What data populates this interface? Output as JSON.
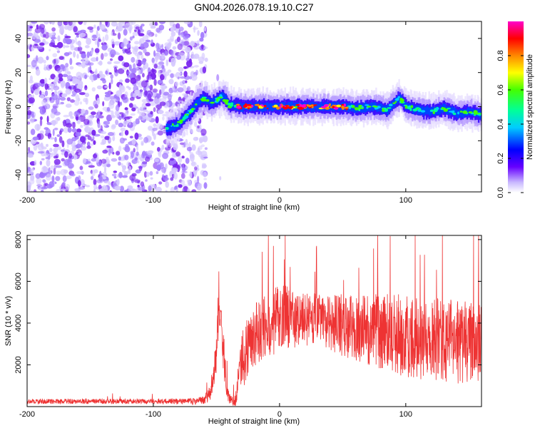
{
  "title": "GN04.2026.078.19.10.C27",
  "chart_data": [
    {
      "type": "heatmap",
      "xlabel": "Height of straight line (km)",
      "ylabel": "Frequency (Hz)",
      "xlim": [
        -200,
        160
      ],
      "ylim": [
        -50,
        50
      ],
      "x_ticks": [
        -200,
        -100,
        0,
        100
      ],
      "x_tick_labels": [
        "-200",
        "-100",
        "0",
        "100"
      ],
      "y_ticks": [
        -40,
        -20,
        0,
        20,
        40
      ],
      "y_tick_labels": [
        "-40",
        "-20",
        "0",
        "20",
        "40"
      ],
      "noise_region_x": [
        -200,
        -70
      ],
      "ridge": {
        "x": [
          -90,
          -80,
          -75,
          -70,
          -65,
          -60,
          -55,
          -50,
          -45,
          -40,
          -30,
          -20,
          -10,
          0,
          10,
          20,
          30,
          40,
          50,
          60,
          70,
          80,
          85,
          90,
          95,
          100,
          110,
          120,
          130,
          140,
          150,
          160
        ],
        "freq": [
          -13,
          -10,
          -6,
          -2,
          3,
          5,
          2,
          4,
          6,
          1,
          0,
          0,
          0,
          0,
          0,
          0,
          0,
          0,
          0,
          -1,
          0,
          -1,
          -2,
          2,
          5,
          0,
          -2,
          -3,
          -1,
          -4,
          -3,
          -5
        ]
      },
      "colorbar": {
        "label": "Normalized spectral amplitude",
        "range": [
          0,
          1
        ],
        "ticks": [
          0.0,
          0.2,
          0.4,
          0.6,
          0.8
        ],
        "tick_labels": [
          "0.0",
          "0.2",
          "0.4",
          "0.6",
          "0.8"
        ]
      }
    },
    {
      "type": "line",
      "xlabel": "Height of straight line (km)",
      "ylabel": "SNR (10 * v/v)",
      "xlim": [
        -200,
        160
      ],
      "ylim": [
        0,
        8200
      ],
      "x_ticks": [
        -200,
        -100,
        0,
        100
      ],
      "x_tick_labels": [
        "-200",
        "-100",
        "0",
        "100"
      ],
      "y_ticks": [
        2000,
        4000,
        6000,
        8000
      ],
      "y_tick_labels": [
        "2000",
        "4000",
        "6000",
        "8000"
      ],
      "series": [
        {
          "name": "SNR",
          "color": "#ee3333",
          "x": [
            -200,
            -150,
            -100,
            -70,
            -60,
            -55,
            -50,
            -48,
            -46,
            -44,
            -42,
            -40,
            -38,
            -35,
            -32,
            -30,
            -28,
            -25,
            -20,
            -15,
            -10,
            -5,
            0,
            5,
            10,
            20,
            30,
            40,
            50,
            60,
            70,
            80,
            90,
            100,
            110,
            120,
            130,
            140,
            150,
            160
          ],
          "base": [
            250,
            250,
            250,
            250,
            300,
            700,
            2500,
            5200,
            3500,
            2400,
            900,
            400,
            300,
            250,
            1500,
            2200,
            2600,
            3000,
            3400,
            3700,
            3900,
            4000,
            4300,
            4400,
            4200,
            4200,
            4200,
            4000,
            3900,
            3800,
            3700,
            3600,
            3500,
            3400,
            3300,
            3200,
            3200,
            3100,
            3100,
            3000
          ],
          "spread": [
            120,
            120,
            120,
            150,
            200,
            400,
            1000,
            1400,
            1200,
            1000,
            500,
            250,
            200,
            300,
            900,
            1400,
            1600,
            1500,
            1500,
            1500,
            1500,
            1600,
            1600,
            1600,
            1400,
            1300,
            1300,
            1300,
            1500,
            1600,
            1700,
            1800,
            1900,
            2000,
            2000,
            2000,
            2000,
            2000,
            2000,
            1900
          ]
        }
      ]
    }
  ]
}
